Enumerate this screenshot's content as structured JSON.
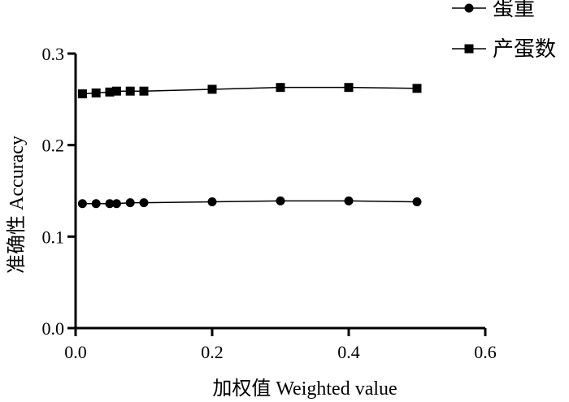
{
  "chart_data": {
    "type": "line",
    "xlabel": "加权值 Weighted value",
    "ylabel": "准确性 Accuracy",
    "xlim": [
      0,
      0.6
    ],
    "ylim": [
      0,
      0.3
    ],
    "x_ticks": [
      "0.0",
      "0.2",
      "0.4",
      "0.6"
    ],
    "y_ticks": [
      "0.0",
      "0.1",
      "0.2",
      "0.3"
    ],
    "grid": false,
    "legend_position": "top-right",
    "series": [
      {
        "name": "蛋重",
        "marker": "circle",
        "color": "#000000",
        "x": [
          0.01,
          0.03,
          0.05,
          0.06,
          0.08,
          0.1,
          0.2,
          0.3,
          0.4,
          0.5
        ],
        "y": [
          0.136,
          0.136,
          0.136,
          0.136,
          0.137,
          0.137,
          0.138,
          0.139,
          0.139,
          0.138
        ]
      },
      {
        "name": "产蛋数",
        "marker": "square",
        "color": "#000000",
        "x": [
          0.01,
          0.03,
          0.05,
          0.06,
          0.08,
          0.1,
          0.2,
          0.3,
          0.4,
          0.5
        ],
        "y": [
          0.256,
          0.257,
          0.258,
          0.259,
          0.259,
          0.259,
          0.261,
          0.263,
          0.263,
          0.262
        ]
      }
    ]
  }
}
